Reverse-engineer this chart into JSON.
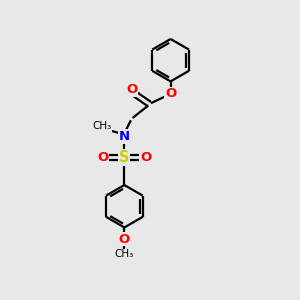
{
  "bg_color": "#e8e8e8",
  "bond_color": "#000000",
  "atom_colors": {
    "O": "#ff0000",
    "N": "#0000ff",
    "S": "#cccc00",
    "C": "#000000"
  },
  "figsize": [
    3.0,
    3.0
  ],
  "dpi": 100,
  "lw": 1.6,
  "ring_r": 0.72
}
